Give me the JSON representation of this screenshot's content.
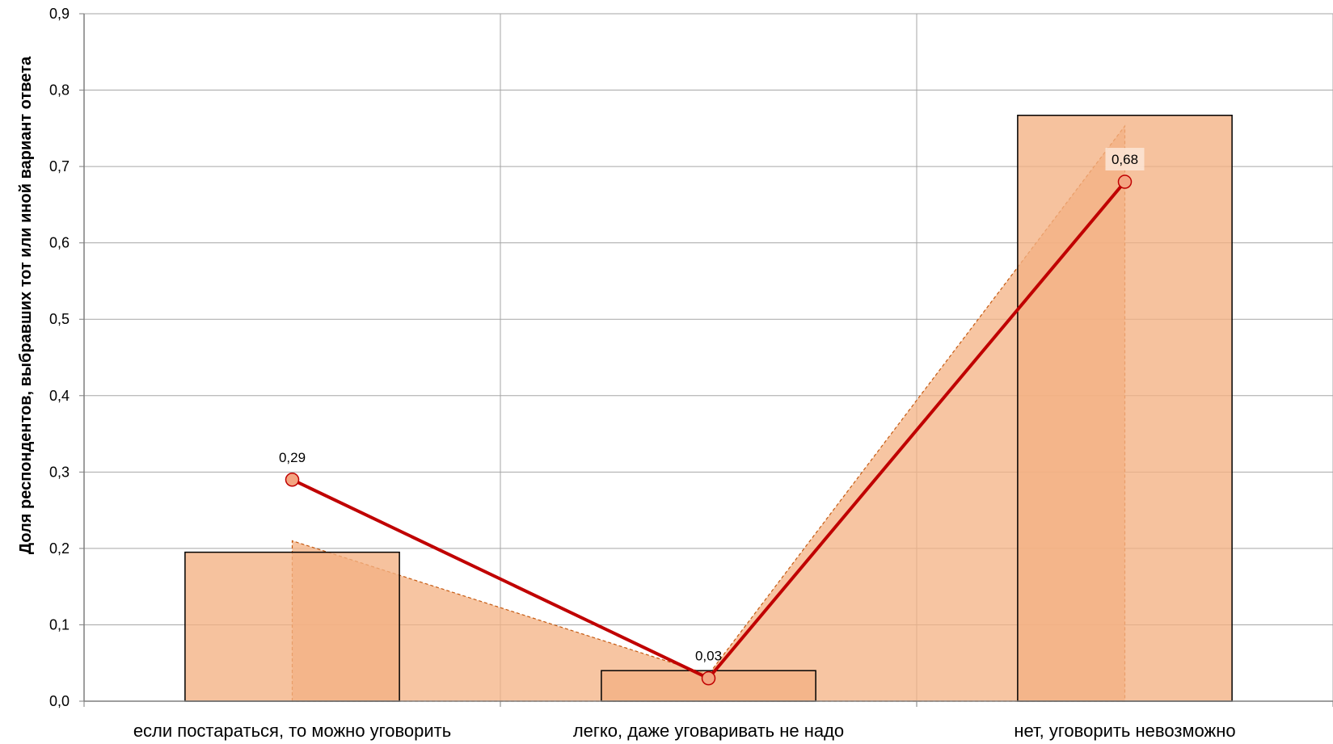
{
  "chart_data": {
    "type": "bar",
    "categories": [
      "если постараться, то можно уговорить",
      "легко, даже уговаривать не надо",
      "нет, уговорить невозможно"
    ],
    "ylabel": "Доля респондентов, выбравших тот или иной вариант ответа",
    "xlabel": "",
    "ylim": [
      0,
      0.9
    ],
    "yticks": [
      "0,0",
      "0,1",
      "0,2",
      "0,3",
      "0,4",
      "0,5",
      "0,6",
      "0,7",
      "0,8",
      "0,9"
    ],
    "grid": true,
    "bars": {
      "values": [
        0.195,
        0.04,
        0.767
      ],
      "color": "#f4b183"
    },
    "area": {
      "values": [
        0.21,
        0.035,
        0.753
      ],
      "color": "#f4b183"
    },
    "line": {
      "values": [
        0.29,
        0.03,
        0.68
      ],
      "data_labels": [
        "0,29",
        "0,03",
        "0,68"
      ],
      "color": "#c00000",
      "marker_color": "#f4a582"
    }
  }
}
